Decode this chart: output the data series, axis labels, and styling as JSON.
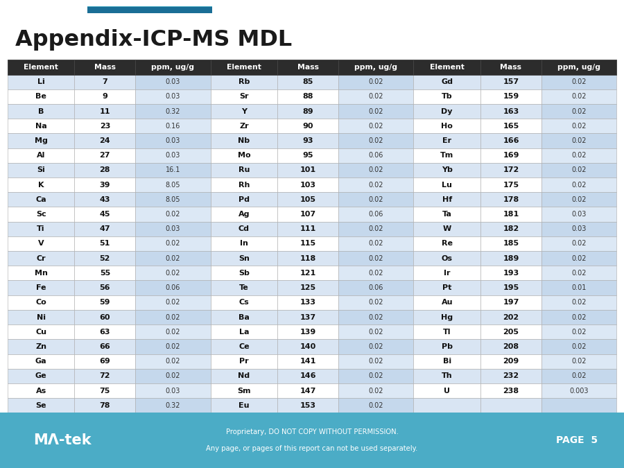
{
  "title": "Appendix-ICP-MS MDL",
  "header": [
    "Element",
    "Mass",
    "ppm, ug/g",
    "Element",
    "Mass",
    "ppm, ug/g",
    "Element",
    "Mass",
    "ppm, ug/g"
  ],
  "rows": [
    [
      "Li",
      "7",
      "0.03",
      "Rb",
      "85",
      "0.02",
      "Gd",
      "157",
      "0.02"
    ],
    [
      "Be",
      "9",
      "0.03",
      "Sr",
      "88",
      "0.02",
      "Tb",
      "159",
      "0.02"
    ],
    [
      "B",
      "11",
      "0.32",
      "Y",
      "89",
      "0.02",
      "Dy",
      "163",
      "0.02"
    ],
    [
      "Na",
      "23",
      "0.16",
      "Zr",
      "90",
      "0.02",
      "Ho",
      "165",
      "0.02"
    ],
    [
      "Mg",
      "24",
      "0.03",
      "Nb",
      "93",
      "0.02",
      "Er",
      "166",
      "0.02"
    ],
    [
      "Al",
      "27",
      "0.03",
      "Mo",
      "95",
      "0.06",
      "Tm",
      "169",
      "0.02"
    ],
    [
      "Si",
      "28",
      "16.1",
      "Ru",
      "101",
      "0.02",
      "Yb",
      "172",
      "0.02"
    ],
    [
      "K",
      "39",
      "8.05",
      "Rh",
      "103",
      "0.02",
      "Lu",
      "175",
      "0.02"
    ],
    [
      "Ca",
      "43",
      "8.05",
      "Pd",
      "105",
      "0.02",
      "Hf",
      "178",
      "0.02"
    ],
    [
      "Sc",
      "45",
      "0.02",
      "Ag",
      "107",
      "0.06",
      "Ta",
      "181",
      "0.03"
    ],
    [
      "Ti",
      "47",
      "0.03",
      "Cd",
      "111",
      "0.02",
      "W",
      "182",
      "0.03"
    ],
    [
      "V",
      "51",
      "0.02",
      "In",
      "115",
      "0.02",
      "Re",
      "185",
      "0.02"
    ],
    [
      "Cr",
      "52",
      "0.02",
      "Sn",
      "118",
      "0.02",
      "Os",
      "189",
      "0.02"
    ],
    [
      "Mn",
      "55",
      "0.02",
      "Sb",
      "121",
      "0.02",
      "Ir",
      "193",
      "0.02"
    ],
    [
      "Fe",
      "56",
      "0.06",
      "Te",
      "125",
      "0.06",
      "Pt",
      "195",
      "0.01"
    ],
    [
      "Co",
      "59",
      "0.02",
      "Cs",
      "133",
      "0.02",
      "Au",
      "197",
      "0.02"
    ],
    [
      "Ni",
      "60",
      "0.02",
      "Ba",
      "137",
      "0.02",
      "Hg",
      "202",
      "0.02"
    ],
    [
      "Cu",
      "63",
      "0.02",
      "La",
      "139",
      "0.02",
      "Tl",
      "205",
      "0.02"
    ],
    [
      "Zn",
      "66",
      "0.02",
      "Ce",
      "140",
      "0.02",
      "Pb",
      "208",
      "0.02"
    ],
    [
      "Ga",
      "69",
      "0.02",
      "Pr",
      "141",
      "0.02",
      "Bi",
      "209",
      "0.02"
    ],
    [
      "Ge",
      "72",
      "0.02",
      "Nd",
      "146",
      "0.02",
      "Th",
      "232",
      "0.02"
    ],
    [
      "As",
      "75",
      "0.03",
      "Sm",
      "147",
      "0.02",
      "U",
      "238",
      "0.003"
    ],
    [
      "Se",
      "78",
      "0.32",
      "Eu",
      "153",
      "0.02",
      "",
      "",
      ""
    ]
  ],
  "header_bg": "#2c2c2c",
  "header_fg": "#ffffff",
  "row_bg_even": "#d9e5f3",
  "row_bg_odd": "#ffffff",
  "title_color": "#1a1a1a",
  "top_bar_color1": "#4bacc6",
  "top_bar_color2": "#1a6e96",
  "footer_bg": "#4bacc6",
  "footer_page": "PAGE  5",
  "ppm_col_bg_even": "#c5d8ec",
  "ppm_col_bg_odd": "#dce8f5"
}
